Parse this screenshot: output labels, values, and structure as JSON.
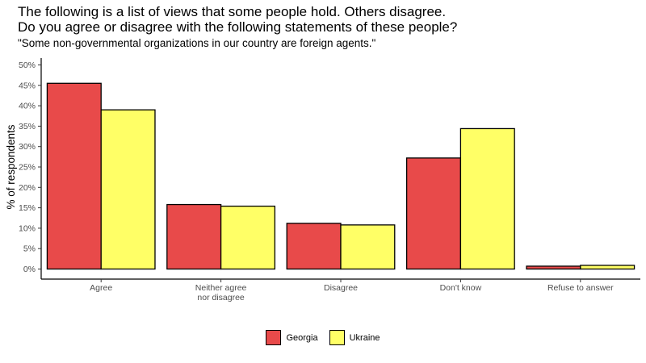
{
  "title_line1": "The following is a list of views that some people hold. Others disagree.",
  "title_line2": "Do you agree or disagree with the following statements of these people?",
  "subtitle": "\"Some non-governmental organizations in our country are foreign agents.\"",
  "chart_data": {
    "type": "bar",
    "ylabel": "% of respondents",
    "xlabel": "",
    "ylim": [
      0,
      50
    ],
    "yticks": [
      "0%",
      "5%",
      "10%",
      "15%",
      "20%",
      "25%",
      "30%",
      "35%",
      "40%",
      "45%",
      "50%"
    ],
    "categories": [
      [
        "Agree"
      ],
      [
        "Neither agree",
        "nor disagree"
      ],
      [
        "Disagree"
      ],
      [
        "Don't know"
      ],
      [
        "Refuse to answer"
      ]
    ],
    "series": [
      {
        "name": "Georgia",
        "color": "#e84a4a",
        "values": [
          45.5,
          15.8,
          11.2,
          27.2,
          0.7
        ]
      },
      {
        "name": "Ukraine",
        "color": "#ffff66",
        "values": [
          39.0,
          15.4,
          10.8,
          34.4,
          0.9
        ]
      }
    ],
    "legend_position": "bottom",
    "grid": false
  }
}
